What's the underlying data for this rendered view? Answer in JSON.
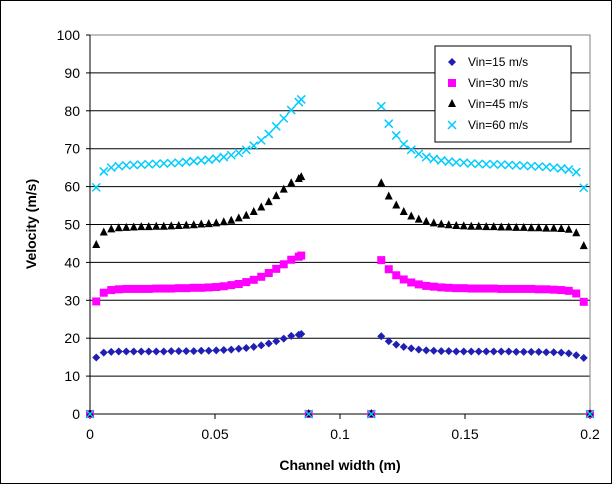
{
  "chart_data": {
    "type": "scatter",
    "xlabel": "Channel width (m)",
    "ylabel": "Velocity (m/s)",
    "xlim": [
      0,
      0.2
    ],
    "ylim": [
      0,
      100
    ],
    "xticks": [
      0,
      0.05,
      0.1,
      0.15,
      0.2
    ],
    "xtick_labels": [
      "0",
      "0.05",
      "0.1",
      "0.15",
      "0.2"
    ],
    "yticks": [
      0,
      10,
      20,
      30,
      40,
      50,
      60,
      70,
      80,
      90,
      100
    ],
    "ytick_labels": [
      "0",
      "10",
      "20",
      "30",
      "40",
      "50",
      "60",
      "70",
      "80",
      "90",
      "100"
    ],
    "grid": "horizontal",
    "legend_position": "top-right",
    "series": [
      {
        "name": "Vin=15 m/s",
        "marker": "diamond",
        "color": "#1f1fb4",
        "x": [
          0,
          0.0025,
          0.0055,
          0.0085,
          0.0115,
          0.0145,
          0.0175,
          0.0205,
          0.0235,
          0.0265,
          0.0295,
          0.0325,
          0.0355,
          0.0385,
          0.0415,
          0.0445,
          0.0475,
          0.0505,
          0.0535,
          0.0565,
          0.0595,
          0.0625,
          0.0655,
          0.0685,
          0.0715,
          0.0745,
          0.0775,
          0.0805,
          0.0835,
          0.0845,
          0.0875,
          0.1125,
          0.1165,
          0.1195,
          0.1225,
          0.1255,
          0.1285,
          0.1315,
          0.1345,
          0.1375,
          0.1405,
          0.1435,
          0.1465,
          0.1495,
          0.1525,
          0.1555,
          0.1585,
          0.1615,
          0.1645,
          0.1675,
          0.1705,
          0.1735,
          0.1765,
          0.1795,
          0.1825,
          0.1855,
          0.1885,
          0.1915,
          0.1945,
          0.1975,
          0.2
        ],
        "y": [
          0,
          14.9,
          16.2,
          16.4,
          16.5,
          16.5,
          16.5,
          16.5,
          16.5,
          16.5,
          16.5,
          16.6,
          16.6,
          16.6,
          16.6,
          16.7,
          16.7,
          16.8,
          16.9,
          17.0,
          17.2,
          17.4,
          17.7,
          18.1,
          18.6,
          19.2,
          19.9,
          20.6,
          20.9,
          21.1,
          0,
          0,
          20.5,
          19.2,
          18.3,
          17.7,
          17.3,
          17.0,
          16.8,
          16.7,
          16.6,
          16.6,
          16.5,
          16.5,
          16.5,
          16.5,
          16.5,
          16.5,
          16.5,
          16.5,
          16.4,
          16.4,
          16.4,
          16.4,
          16.3,
          16.3,
          16.2,
          16.0,
          15.5,
          14.8,
          0
        ]
      },
      {
        "name": "Vin=30 m/s",
        "marker": "square",
        "color": "#ff00ff",
        "x": [
          0,
          0.0025,
          0.0055,
          0.0085,
          0.0115,
          0.0145,
          0.0175,
          0.0205,
          0.0235,
          0.0265,
          0.0295,
          0.0325,
          0.0355,
          0.0385,
          0.0415,
          0.0445,
          0.0475,
          0.0505,
          0.0535,
          0.0565,
          0.0595,
          0.0625,
          0.0655,
          0.0685,
          0.0715,
          0.0745,
          0.0775,
          0.0805,
          0.0835,
          0.0845,
          0.0875,
          0.1125,
          0.1165,
          0.1195,
          0.1225,
          0.1255,
          0.1285,
          0.1315,
          0.1345,
          0.1375,
          0.1405,
          0.1435,
          0.1465,
          0.1495,
          0.1525,
          0.1555,
          0.1585,
          0.1615,
          0.1645,
          0.1675,
          0.1705,
          0.1735,
          0.1765,
          0.1795,
          0.1825,
          0.1855,
          0.1885,
          0.1915,
          0.1945,
          0.1975,
          0.2
        ],
        "y": [
          0,
          29.7,
          32.0,
          32.7,
          32.9,
          33.0,
          33.0,
          33.0,
          33.0,
          33.1,
          33.1,
          33.1,
          33.2,
          33.2,
          33.3,
          33.3,
          33.4,
          33.5,
          33.7,
          34.0,
          34.3,
          34.8,
          35.4,
          36.2,
          37.2,
          38.3,
          39.5,
          40.7,
          41.5,
          41.8,
          0,
          0,
          40.6,
          38.2,
          36.6,
          35.5,
          34.7,
          34.2,
          33.8,
          33.6,
          33.4,
          33.3,
          33.2,
          33.2,
          33.1,
          33.1,
          33.1,
          33.1,
          33.0,
          33.0,
          33.0,
          33.0,
          33.0,
          32.9,
          32.9,
          32.8,
          32.7,
          32.5,
          31.8,
          29.6,
          0
        ]
      },
      {
        "name": "Vin=45 m/s",
        "marker": "triangle",
        "color": "#000000",
        "x": [
          0,
          0.0025,
          0.0055,
          0.0085,
          0.0115,
          0.0145,
          0.0175,
          0.0205,
          0.0235,
          0.0265,
          0.0295,
          0.0325,
          0.0355,
          0.0385,
          0.0415,
          0.0445,
          0.0475,
          0.0505,
          0.0535,
          0.0565,
          0.0595,
          0.0625,
          0.0655,
          0.0685,
          0.0715,
          0.0745,
          0.0775,
          0.0805,
          0.0835,
          0.0845,
          0.0875,
          0.1125,
          0.1165,
          0.1195,
          0.1225,
          0.1255,
          0.1285,
          0.1315,
          0.1345,
          0.1375,
          0.1405,
          0.1435,
          0.1465,
          0.1495,
          0.1525,
          0.1555,
          0.1585,
          0.1615,
          0.1645,
          0.1675,
          0.1705,
          0.1735,
          0.1765,
          0.1795,
          0.1825,
          0.1855,
          0.1885,
          0.1915,
          0.1945,
          0.1975,
          0.2
        ],
        "y": [
          0,
          44.6,
          47.9,
          48.7,
          49.0,
          49.1,
          49.2,
          49.3,
          49.3,
          49.4,
          49.4,
          49.5,
          49.6,
          49.7,
          49.8,
          50.0,
          50.1,
          50.3,
          50.6,
          51.0,
          51.6,
          52.3,
          53.3,
          54.5,
          55.9,
          57.5,
          59.2,
          60.9,
          62.0,
          62.5,
          0,
          0,
          60.9,
          57.4,
          55.0,
          53.3,
          52.1,
          51.3,
          50.7,
          50.3,
          50.0,
          49.8,
          49.6,
          49.5,
          49.4,
          49.4,
          49.3,
          49.3,
          49.2,
          49.2,
          49.1,
          49.1,
          49.0,
          49.0,
          48.9,
          48.9,
          48.8,
          48.6,
          47.7,
          44.3,
          0
        ]
      },
      {
        "name": "Vin=60 m/s",
        "marker": "x",
        "color": "#00ccff",
        "x": [
          0,
          0.0025,
          0.0055,
          0.0085,
          0.0115,
          0.0145,
          0.0175,
          0.0205,
          0.0235,
          0.0265,
          0.0295,
          0.0325,
          0.0355,
          0.0385,
          0.0415,
          0.0445,
          0.0475,
          0.0505,
          0.0535,
          0.0565,
          0.0595,
          0.0625,
          0.0655,
          0.0685,
          0.0715,
          0.0745,
          0.0775,
          0.0805,
          0.0835,
          0.0845,
          0.0875,
          0.1125,
          0.1165,
          0.1195,
          0.1225,
          0.1255,
          0.1285,
          0.1315,
          0.1345,
          0.1375,
          0.1405,
          0.1435,
          0.1465,
          0.1495,
          0.1525,
          0.1555,
          0.1585,
          0.1615,
          0.1645,
          0.1675,
          0.1705,
          0.1735,
          0.1765,
          0.1795,
          0.1825,
          0.1855,
          0.1885,
          0.1915,
          0.1945,
          0.1975,
          0.2
        ],
        "y": [
          0,
          59.8,
          64.0,
          65.0,
          65.4,
          65.6,
          65.7,
          65.8,
          65.9,
          66.0,
          66.1,
          66.2,
          66.3,
          66.5,
          66.7,
          66.9,
          67.1,
          67.4,
          67.8,
          68.3,
          68.9,
          69.7,
          70.8,
          72.2,
          73.9,
          75.9,
          78.0,
          80.2,
          82.3,
          83.0,
          0,
          0,
          81.2,
          76.6,
          73.5,
          71.2,
          69.7,
          68.6,
          67.8,
          67.3,
          66.9,
          66.6,
          66.4,
          66.3,
          66.1,
          66.0,
          65.9,
          65.9,
          65.8,
          65.7,
          65.6,
          65.5,
          65.4,
          65.3,
          65.2,
          65.0,
          64.8,
          64.5,
          63.8,
          59.7,
          0
        ]
      }
    ]
  }
}
